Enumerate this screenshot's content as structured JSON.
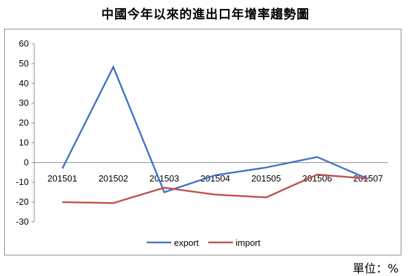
{
  "chart_data": {
    "type": "line",
    "title": "中國今年以來的進出口年增率趨勢圖",
    "unit_label": "單位：%",
    "categories": [
      "201501",
      "201502",
      "201503",
      "201504",
      "201505",
      "201506",
      "201507"
    ],
    "series": [
      {
        "name": "export",
        "color": "#4472C4",
        "values": [
          -3,
          48.3,
          -15,
          -6.4,
          -2.5,
          2.8,
          -8.3
        ]
      },
      {
        "name": "import",
        "color": "#C0504D",
        "values": [
          -20,
          -20.5,
          -12.7,
          -16.2,
          -17.6,
          -6.1,
          -8.1
        ]
      }
    ],
    "yticks": [
      60,
      50,
      40,
      30,
      20,
      10,
      0,
      -10,
      -20,
      -30
    ],
    "ylim": [
      -30,
      60
    ],
    "legend_position": "bottom",
    "grid": false
  }
}
